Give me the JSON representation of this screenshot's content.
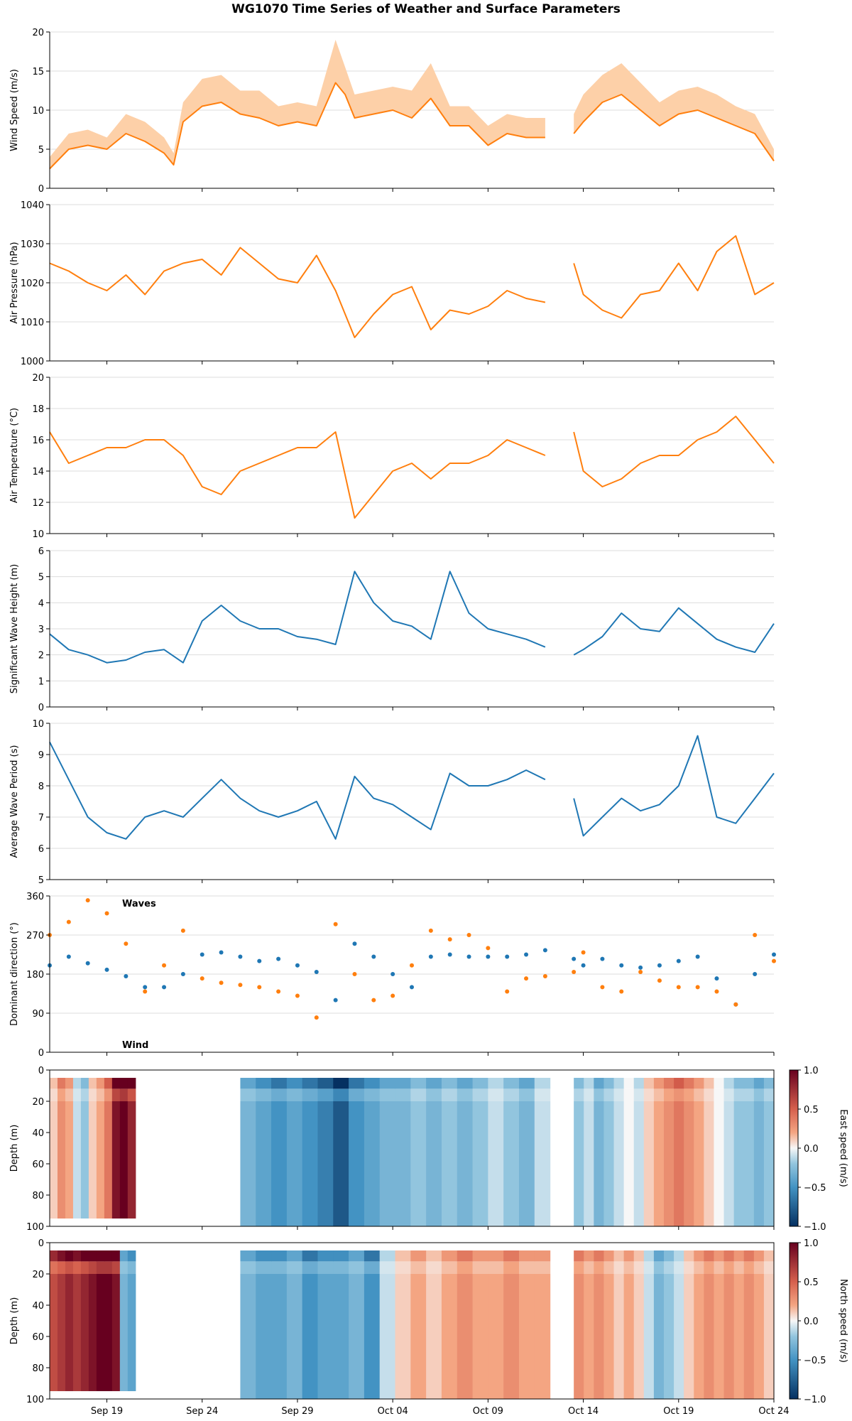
{
  "figure_title": "WG1070 Time Series of Weather and Surface Parameters",
  "colors": {
    "wind": "#ff7f0e",
    "waves": "#1f77b4",
    "wind_band": "#fdd0a8",
    "grid": "#dddddd"
  },
  "x_axis": {
    "start": "2023-09-16",
    "end": "2023-10-24",
    "ticks": [
      {
        "date": "2023-09-19",
        "label": "Sep 19"
      },
      {
        "date": "2023-09-24",
        "label": "Sep 24"
      },
      {
        "date": "2023-09-29",
        "label": "Sep 29"
      },
      {
        "date": "2023-10-04",
        "label": "Oct 04"
      },
      {
        "date": "2023-10-09",
        "label": "Oct 09"
      },
      {
        "date": "2023-10-14",
        "label": "Oct 14"
      },
      {
        "date": "2023-10-19",
        "label": "Oct 19"
      },
      {
        "date": "2023-10-24",
        "label": "Oct 24"
      }
    ],
    "data_gaps": [
      [
        "2023-10-12T06:00",
        "2023-10-13T12:00"
      ]
    ]
  },
  "chart_data": [
    {
      "type": "area",
      "ylabel": "Wind Speed (m/s)",
      "ylim": [
        0,
        20
      ],
      "yticks": [
        0,
        5,
        10,
        15,
        20
      ],
      "grid": true,
      "color": "#ff7f0e",
      "band": "max",
      "series": {
        "x": [
          "2023-09-16",
          "2023-09-17",
          "2023-09-18",
          "2023-09-19",
          "2023-09-20",
          "2023-09-21",
          "2023-09-22",
          "2023-09-22T12:00",
          "2023-09-23",
          "2023-09-24",
          "2023-09-25",
          "2023-09-26",
          "2023-09-27",
          "2023-09-28",
          "2023-09-29",
          "2023-09-30",
          "2023-10-01",
          "2023-10-01T12:00",
          "2023-10-02",
          "2023-10-03",
          "2023-10-04",
          "2023-10-05",
          "2023-10-06",
          "2023-10-07",
          "2023-10-08",
          "2023-10-09",
          "2023-10-10",
          "2023-10-11",
          "2023-10-12",
          "2023-10-13T12:00",
          "2023-10-14",
          "2023-10-15",
          "2023-10-16",
          "2023-10-17",
          "2023-10-18",
          "2023-10-19",
          "2023-10-20",
          "2023-10-21",
          "2023-10-22",
          "2023-10-23",
          "2023-10-24"
        ],
        "mean": [
          2.5,
          5,
          5.5,
          5,
          7,
          6,
          4.5,
          3,
          8.5,
          10.5,
          11,
          9.5,
          9,
          8,
          8.5,
          8,
          13.5,
          12,
          9,
          9.5,
          10,
          9,
          11.5,
          8,
          8,
          5.5,
          7,
          6.5,
          6.5,
          7,
          8.5,
          11,
          12,
          10,
          8,
          9.5,
          10,
          9,
          8,
          7,
          3.5
        ],
        "max": [
          4,
          7,
          7.5,
          6.5,
          9.5,
          8.5,
          6.5,
          4.5,
          11,
          14,
          14.5,
          12.5,
          12.5,
          10.5,
          11,
          10.5,
          19,
          15.5,
          12,
          12.5,
          13,
          12.5,
          16,
          10.5,
          10.5,
          8,
          9.5,
          9,
          9,
          9.5,
          12,
          14.5,
          16,
          13.5,
          11,
          12.5,
          13,
          12,
          10.5,
          9.5,
          5
        ]
      }
    },
    {
      "type": "line",
      "ylabel": "Air Pressure (hPa)",
      "ylim": [
        1000,
        1040
      ],
      "yticks": [
        1000,
        1010,
        1020,
        1030,
        1040
      ],
      "grid": true,
      "color": "#ff7f0e",
      "series": {
        "x": [
          "2023-09-16",
          "2023-09-17",
          "2023-09-18",
          "2023-09-19",
          "2023-09-20",
          "2023-09-21",
          "2023-09-22",
          "2023-09-23",
          "2023-09-24",
          "2023-09-25",
          "2023-09-26",
          "2023-09-27",
          "2023-09-28",
          "2023-09-29",
          "2023-09-30",
          "2023-10-01",
          "2023-10-02",
          "2023-10-03",
          "2023-10-04",
          "2023-10-05",
          "2023-10-06",
          "2023-10-07",
          "2023-10-08",
          "2023-10-09",
          "2023-10-10",
          "2023-10-11",
          "2023-10-12",
          "2023-10-13T12:00",
          "2023-10-14",
          "2023-10-15",
          "2023-10-16",
          "2023-10-17",
          "2023-10-18",
          "2023-10-19",
          "2023-10-20",
          "2023-10-21",
          "2023-10-22",
          "2023-10-23",
          "2023-10-24"
        ],
        "values": [
          1025,
          1023,
          1020,
          1018,
          1022,
          1017,
          1023,
          1025,
          1026,
          1022,
          1029,
          1025,
          1021,
          1020,
          1027,
          1018,
          1006,
          1012,
          1017,
          1019,
          1008,
          1013,
          1012,
          1014,
          1018,
          1016,
          1015,
          1025,
          1017,
          1013,
          1011,
          1017,
          1018,
          1025,
          1018,
          1028,
          1032,
          1017,
          1020
        ]
      }
    },
    {
      "type": "line",
      "ylabel": "Air Temperature (°C)",
      "ylim": [
        10,
        20
      ],
      "yticks": [
        10,
        12,
        14,
        16,
        18,
        20
      ],
      "grid": true,
      "color": "#ff7f0e",
      "series": {
        "x": [
          "2023-09-16",
          "2023-09-17",
          "2023-09-18",
          "2023-09-19",
          "2023-09-20",
          "2023-09-21",
          "2023-09-22",
          "2023-09-23",
          "2023-09-24",
          "2023-09-25",
          "2023-09-26",
          "2023-09-27",
          "2023-09-28",
          "2023-09-29",
          "2023-09-30",
          "2023-10-01",
          "2023-10-02",
          "2023-10-03",
          "2023-10-04",
          "2023-10-05",
          "2023-10-06",
          "2023-10-07",
          "2023-10-08",
          "2023-10-09",
          "2023-10-10",
          "2023-10-11",
          "2023-10-12",
          "2023-10-13T12:00",
          "2023-10-14",
          "2023-10-15",
          "2023-10-16",
          "2023-10-17",
          "2023-10-18",
          "2023-10-19",
          "2023-10-20",
          "2023-10-21",
          "2023-10-22",
          "2023-10-23",
          "2023-10-24"
        ],
        "values": [
          16.5,
          14.5,
          15,
          15.5,
          15.5,
          16,
          16,
          15,
          13,
          12.5,
          14,
          14.5,
          15,
          15.5,
          15.5,
          16.5,
          11,
          12.5,
          14,
          14.5,
          13.5,
          14.5,
          14.5,
          15,
          16,
          15.5,
          15,
          16.5,
          14,
          13,
          13.5,
          14.5,
          15,
          15,
          16,
          16.5,
          17.5,
          16,
          14.5
        ]
      }
    },
    {
      "type": "line",
      "ylabel": "Significant Wave Height (m)",
      "ylim": [
        0,
        6
      ],
      "yticks": [
        0,
        1,
        2,
        3,
        4,
        5,
        6
      ],
      "grid": true,
      "color": "#1f77b4",
      "series": {
        "x": [
          "2023-09-16",
          "2023-09-17",
          "2023-09-18",
          "2023-09-19",
          "2023-09-20",
          "2023-09-21",
          "2023-09-22",
          "2023-09-23",
          "2023-09-24",
          "2023-09-25",
          "2023-09-26",
          "2023-09-27",
          "2023-09-28",
          "2023-09-29",
          "2023-09-30",
          "2023-10-01",
          "2023-10-02",
          "2023-10-03",
          "2023-10-04",
          "2023-10-05",
          "2023-10-06",
          "2023-10-07",
          "2023-10-08",
          "2023-10-09",
          "2023-10-10",
          "2023-10-11",
          "2023-10-12",
          "2023-10-13T12:00",
          "2023-10-14",
          "2023-10-15",
          "2023-10-16",
          "2023-10-17",
          "2023-10-18",
          "2023-10-19",
          "2023-10-20",
          "2023-10-21",
          "2023-10-22",
          "2023-10-23",
          "2023-10-24"
        ],
        "values": [
          2.8,
          2.2,
          2,
          1.7,
          1.8,
          2.1,
          2.2,
          1.7,
          3.3,
          3.9,
          3.3,
          3.0,
          3.0,
          2.7,
          2.6,
          2.4,
          5.2,
          4.0,
          3.3,
          3.1,
          2.6,
          5.2,
          3.6,
          3.0,
          2.8,
          2.6,
          2.3,
          2.0,
          2.2,
          2.7,
          3.6,
          3.0,
          2.9,
          3.8,
          3.2,
          2.6,
          2.3,
          2.1,
          3.2
        ]
      }
    },
    {
      "type": "line",
      "ylabel": "Average Wave Period (s)",
      "ylim": [
        5,
        10
      ],
      "yticks": [
        5,
        6,
        7,
        8,
        9,
        10
      ],
      "grid": true,
      "color": "#1f77b4",
      "series": {
        "x": [
          "2023-09-16",
          "2023-09-17",
          "2023-09-18",
          "2023-09-19",
          "2023-09-20",
          "2023-09-21",
          "2023-09-22",
          "2023-09-23",
          "2023-09-24",
          "2023-09-25",
          "2023-09-26",
          "2023-09-27",
          "2023-09-28",
          "2023-09-29",
          "2023-09-30",
          "2023-10-01",
          "2023-10-02",
          "2023-10-03",
          "2023-10-04",
          "2023-10-05",
          "2023-10-06",
          "2023-10-07",
          "2023-10-08",
          "2023-10-09",
          "2023-10-10",
          "2023-10-11",
          "2023-10-12",
          "2023-10-13T12:00",
          "2023-10-14",
          "2023-10-15",
          "2023-10-16",
          "2023-10-17",
          "2023-10-18",
          "2023-10-19",
          "2023-10-20",
          "2023-10-21",
          "2023-10-22",
          "2023-10-23",
          "2023-10-24"
        ],
        "values": [
          9.4,
          8.2,
          7.0,
          6.5,
          6.3,
          7.0,
          7.2,
          7.0,
          7.6,
          8.2,
          7.6,
          7.2,
          7.0,
          7.2,
          7.5,
          6.3,
          8.3,
          7.6,
          7.4,
          7.0,
          6.6,
          8.4,
          8.0,
          8.0,
          8.2,
          8.5,
          8.2,
          7.6,
          6.4,
          7.0,
          7.6,
          7.2,
          7.4,
          8.0,
          9.6,
          7.0,
          6.8,
          7.6,
          8.4
        ]
      }
    },
    {
      "type": "scatter",
      "ylabel": "Dominant direction (°)",
      "ylim": [
        0,
        360
      ],
      "yticks": [
        0,
        90,
        180,
        270,
        360
      ],
      "grid": true,
      "series": [
        {
          "name": "Waves",
          "color": "#1f77b4",
          "x": [
            "2023-09-16",
            "2023-09-17",
            "2023-09-18",
            "2023-09-19",
            "2023-09-20",
            "2023-09-21",
            "2023-09-22",
            "2023-09-23",
            "2023-09-24",
            "2023-09-25",
            "2023-09-26",
            "2023-09-27",
            "2023-09-28",
            "2023-09-29",
            "2023-09-30",
            "2023-10-01",
            "2023-10-02",
            "2023-10-03",
            "2023-10-04",
            "2023-10-05",
            "2023-10-06",
            "2023-10-07",
            "2023-10-08",
            "2023-10-09",
            "2023-10-10",
            "2023-10-11",
            "2023-10-12",
            "2023-10-13T12:00",
            "2023-10-14",
            "2023-10-15",
            "2023-10-16",
            "2023-10-17",
            "2023-10-18",
            "2023-10-19",
            "2023-10-20",
            "2023-10-21",
            "2023-10-22",
            "2023-10-23",
            "2023-10-24"
          ],
          "values": [
            200,
            220,
            205,
            190,
            175,
            150,
            150,
            180,
            225,
            230,
            220,
            210,
            215,
            200,
            185,
            120,
            250,
            220,
            180,
            150,
            220,
            225,
            220,
            220,
            220,
            225,
            235,
            215,
            200,
            215,
            200,
            195,
            200,
            210,
            220,
            170,
            110,
            180,
            225
          ]
        },
        {
          "name": "Wind",
          "color": "#ff7f0e",
          "x": [
            "2023-09-16",
            "2023-09-17",
            "2023-09-18",
            "2023-09-19",
            "2023-09-20",
            "2023-09-21",
            "2023-09-22",
            "2023-09-23",
            "2023-09-24",
            "2023-09-25",
            "2023-09-26",
            "2023-09-27",
            "2023-09-28",
            "2023-09-29",
            "2023-09-30",
            "2023-10-01",
            "2023-10-02",
            "2023-10-03",
            "2023-10-04",
            "2023-10-05",
            "2023-10-06",
            "2023-10-07",
            "2023-10-08",
            "2023-10-09",
            "2023-10-10",
            "2023-10-11",
            "2023-10-12",
            "2023-10-13T12:00",
            "2023-10-14",
            "2023-10-15",
            "2023-10-16",
            "2023-10-17",
            "2023-10-18",
            "2023-10-19",
            "2023-10-20",
            "2023-10-21",
            "2023-10-22",
            "2023-10-23",
            "2023-10-24"
          ],
          "values": [
            270,
            300,
            350,
            320,
            250,
            140,
            200,
            280,
            170,
            160,
            155,
            150,
            140,
            130,
            80,
            295,
            180,
            120,
            130,
            200,
            280,
            260,
            270,
            240,
            140,
            170,
            175,
            185,
            230,
            150,
            140,
            185,
            165,
            150,
            150,
            140,
            110,
            270,
            210
          ]
        }
      ]
    },
    {
      "type": "heatmap",
      "ylabel": "Depth (m)",
      "ylim": [
        100,
        0
      ],
      "yticks": [
        0,
        20,
        40,
        60,
        80,
        100
      ],
      "colorbar": {
        "label": "East speed (m/s)",
        "range": [
          -1.0,
          1.0
        ],
        "ticks": [
          "1.0",
          "0.5",
          "0.0",
          "−0.5",
          "−1.0"
        ]
      },
      "segments": [
        {
          "start": "2023-09-16",
          "end": "2023-09-20T12:00",
          "values": [
            0.1,
            0.3,
            0.2,
            -0.1,
            -0.2,
            0.1,
            0.2,
            0.4,
            0.9,
            1.0,
            0.8
          ]
        },
        {
          "start": "2023-09-26",
          "end": "2023-10-12T06:00",
          "values": [
            -0.3,
            -0.4,
            -0.5,
            -0.4,
            -0.5,
            -0.6,
            -0.8,
            -0.5,
            -0.4,
            -0.3,
            -0.3,
            -0.2,
            -0.3,
            -0.2,
            -0.3,
            -0.2,
            -0.1,
            -0.2,
            -0.3,
            -0.1
          ]
        },
        {
          "start": "2023-10-13T12:00",
          "end": "2023-10-24",
          "values": [
            -0.2,
            -0.1,
            -0.3,
            -0.2,
            -0.1,
            0.0,
            -0.1,
            0.1,
            0.2,
            0.3,
            0.4,
            0.3,
            0.2,
            0.1,
            0.0,
            -0.1,
            -0.2,
            -0.2,
            -0.3,
            -0.2
          ]
        }
      ]
    },
    {
      "type": "heatmap",
      "ylabel": "Depth (m)",
      "ylim": [
        100,
        0
      ],
      "yticks": [
        0,
        20,
        40,
        60,
        80,
        100
      ],
      "colorbar": {
        "label": "North speed (m/s)",
        "range": [
          -1.0,
          1.0
        ],
        "ticks": [
          "1.0",
          "0.5",
          "0.0",
          "−0.5",
          "−1.0"
        ]
      },
      "segments": [
        {
          "start": "2023-09-16",
          "end": "2023-09-20T12:00",
          "values": [
            0.6,
            0.7,
            0.8,
            0.7,
            0.8,
            0.9,
            1.0,
            1.0,
            0.9,
            -0.3,
            -0.4
          ]
        },
        {
          "start": "2023-09-26",
          "end": "2023-10-12T06:00",
          "values": [
            -0.3,
            -0.4,
            -0.4,
            -0.3,
            -0.5,
            -0.4,
            -0.4,
            -0.3,
            -0.5,
            -0.1,
            0.1,
            0.2,
            0.1,
            0.2,
            0.3,
            0.2,
            0.2,
            0.3,
            0.2,
            0.2
          ]
        },
        {
          "start": "2023-10-13T12:00",
          "end": "2023-10-24",
          "values": [
            0.3,
            0.2,
            0.3,
            0.2,
            0.1,
            0.2,
            0.1,
            -0.1,
            -0.3,
            -0.2,
            -0.1,
            0.1,
            0.2,
            0.3,
            0.2,
            0.3,
            0.2,
            0.3,
            0.2,
            0.1
          ]
        }
      ]
    }
  ]
}
